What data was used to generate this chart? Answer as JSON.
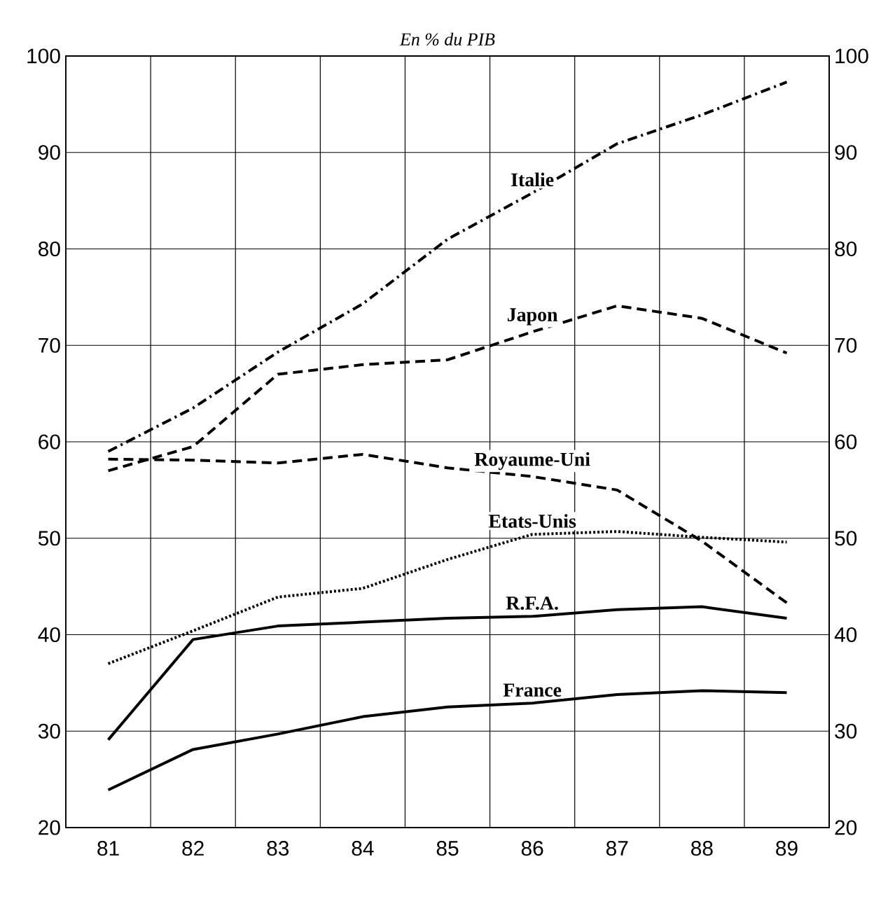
{
  "chart_data": {
    "type": "line",
    "subtitle": "*En % du PIB*",
    "categories": [
      "81",
      "82",
      "83",
      "84",
      "85",
      "86",
      "87",
      "88",
      "89"
    ],
    "series": [
      {
        "name": "Italie",
        "color": "#000000",
        "line_style": "dashdot",
        "values": [
          59,
          63.5,
          69.3,
          74.3,
          81,
          85.8,
          90.9,
          93.9,
          97.3
        ]
      },
      {
        "name": "Japon",
        "color": "#000000",
        "line_style": "dashed",
        "values": [
          57,
          59.5,
          67,
          68,
          68.5,
          71.4,
          74.1,
          72.8,
          69.2
        ]
      },
      {
        "name": "Royaume-Uni",
        "color": "#000000",
        "line_style": "dashed",
        "values": [
          58.2,
          58.1,
          57.8,
          58.7,
          57.3,
          56.4,
          55,
          49.7,
          43.3
        ]
      },
      {
        "name": "Etats-Unis",
        "color": "#000000",
        "line_style": "dotted",
        "values": [
          37,
          40.4,
          43.9,
          44.8,
          47.8,
          50.4,
          50.7,
          50.1,
          49.6
        ]
      },
      {
        "name": "R.F.A.",
        "color": "#000000",
        "line_style": "solid",
        "values": [
          29.1,
          39.5,
          40.9,
          41.3,
          41.7,
          41.9,
          42.6,
          42.9,
          41.7
        ]
      },
      {
        "name": "France",
        "color": "#000000",
        "line_style": "solid",
        "values": [
          23.9,
          28.1,
          29.7,
          31.5,
          32.5,
          32.9,
          33.8,
          34.2,
          34
        ]
      }
    ],
    "ylim": [
      20,
      100
    ],
    "yticks": [
      20,
      30,
      40,
      50,
      60,
      70,
      80,
      90,
      100
    ],
    "y2lim": [
      20,
      100
    ],
    "y2ticks": [
      20,
      30,
      40,
      50,
      60,
      70,
      80,
      90,
      100
    ],
    "grid": true
  }
}
